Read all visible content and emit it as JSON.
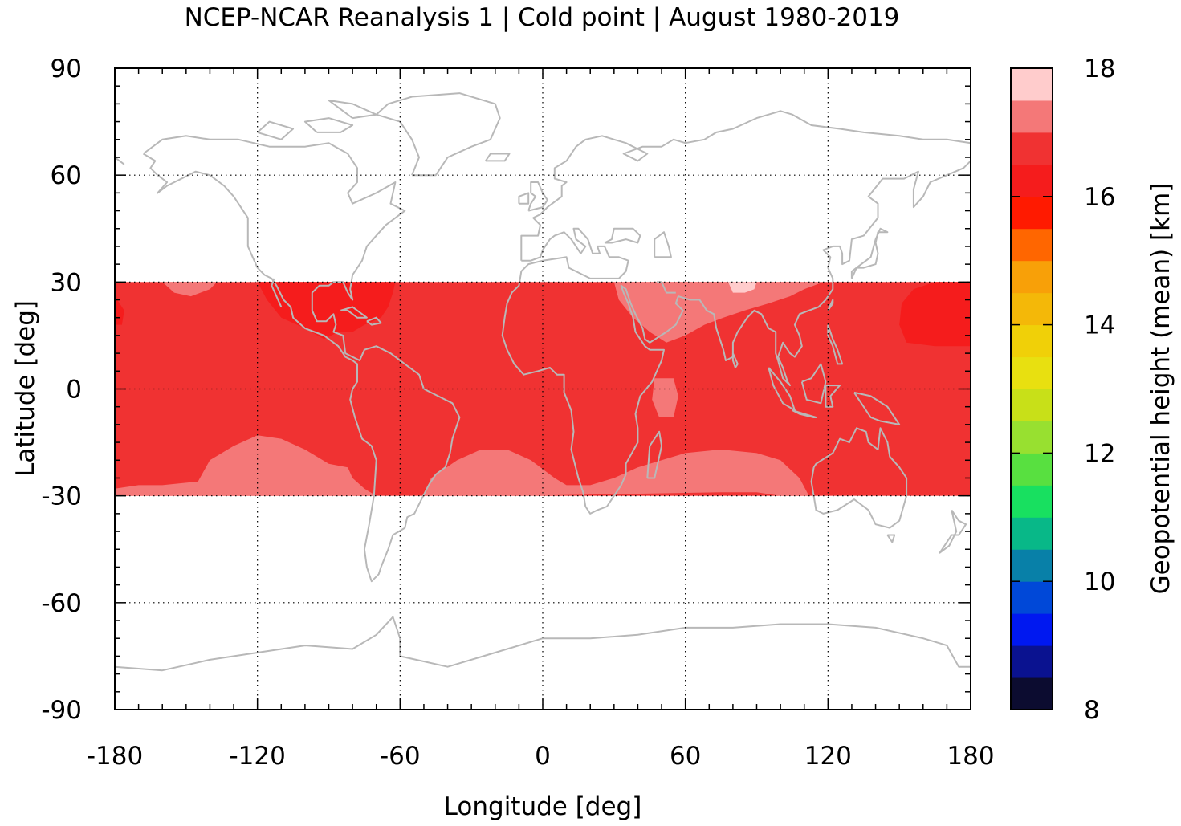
{
  "title": "NCEP-NCAR Reanalysis 1 | Cold point | August 1980-2019",
  "x_axis": {
    "label": "Longitude [deg]",
    "range": [
      -180,
      180
    ],
    "ticks": [
      "-180",
      "-120",
      "-60",
      "0",
      "60",
      "120",
      "180"
    ],
    "tick_values": [
      -180,
      -120,
      -60,
      0,
      60,
      120,
      180
    ],
    "minor_step": 10
  },
  "y_axis": {
    "label": "Latitude [deg]",
    "range": [
      -90,
      90
    ],
    "ticks": [
      "90",
      "60",
      "30",
      "0",
      "-30",
      "-60",
      "-90"
    ],
    "tick_values": [
      90,
      60,
      30,
      0,
      -30,
      -60,
      -90
    ],
    "minor_step": 5
  },
  "grid": "dotted",
  "coastline_color": "#b8b8b8",
  "colorbar": {
    "label": "Geopotential height (mean) [km]",
    "range": [
      8,
      18
    ],
    "ticks": [
      "18",
      "16",
      "14",
      "12",
      "10",
      "8"
    ],
    "tick_values": [
      18,
      16,
      14,
      12,
      10,
      8
    ],
    "levels": [
      {
        "from": 8.0,
        "to": 8.5,
        "color": "#0c0c30"
      },
      {
        "from": 8.5,
        "to": 9.0,
        "color": "#0a1290"
      },
      {
        "from": 9.0,
        "to": 9.5,
        "color": "#0018f0"
      },
      {
        "from": 9.5,
        "to": 10.0,
        "color": "#0048d8"
      },
      {
        "from": 10.0,
        "to": 10.5,
        "color": "#0880a8"
      },
      {
        "from": 10.5,
        "to": 11.0,
        "color": "#08b888"
      },
      {
        "from": 11.0,
        "to": 11.5,
        "color": "#18e060"
      },
      {
        "from": 11.5,
        "to": 12.0,
        "color": "#58e040"
      },
      {
        "from": 12.0,
        "to": 12.5,
        "color": "#98e030"
      },
      {
        "from": 12.5,
        "to": 13.0,
        "color": "#c8e018"
      },
      {
        "from": 13.0,
        "to": 13.5,
        "color": "#e8e010"
      },
      {
        "from": 13.5,
        "to": 14.0,
        "color": "#f0d008"
      },
      {
        "from": 14.0,
        "to": 14.5,
        "color": "#f4b808"
      },
      {
        "from": 14.5,
        "to": 15.0,
        "color": "#f8a008"
      },
      {
        "from": 15.0,
        "to": 15.5,
        "color": "#ff6600"
      },
      {
        "from": 15.5,
        "to": 16.0,
        "color": "#ff1a00"
      },
      {
        "from": 16.0,
        "to": 16.5,
        "color": "#f51c1c"
      },
      {
        "from": 16.5,
        "to": 17.0,
        "color": "#f03232"
      },
      {
        "from": 17.0,
        "to": 17.5,
        "color": "#f47878"
      },
      {
        "from": 17.5,
        "to": 18.0,
        "color": "#ffcccc"
      }
    ]
  },
  "chart_data": {
    "type": "heatmap",
    "x_extent": [
      -180,
      180
    ],
    "y_extent": [
      -30,
      30
    ],
    "background_value": 16.75,
    "regions": [
      {
        "name": "southern-pacific-band",
        "value": 17.25,
        "polygon": [
          [
            -180,
            -30
          ],
          [
            -180,
            -28
          ],
          [
            -170,
            -27
          ],
          [
            -160,
            -27
          ],
          [
            -145,
            -26
          ],
          [
            -140,
            -20
          ],
          [
            -130,
            -16
          ],
          [
            -120,
            -13
          ],
          [
            -110,
            -14
          ],
          [
            -100,
            -17
          ],
          [
            -90,
            -21
          ],
          [
            -82,
            -22
          ],
          [
            -80,
            -25
          ],
          [
            -75,
            -28
          ],
          [
            -70,
            -30
          ]
        ]
      },
      {
        "name": "southern-atlantic-indian-band",
        "value": 17.25,
        "polygon": [
          [
            -50,
            -30
          ],
          [
            -47,
            -25
          ],
          [
            -36,
            -20
          ],
          [
            -26,
            -17
          ],
          [
            -15,
            -17
          ],
          [
            -5,
            -20
          ],
          [
            5,
            -25
          ],
          [
            10,
            -27
          ],
          [
            20,
            -27
          ],
          [
            30,
            -25
          ],
          [
            40,
            -22
          ],
          [
            50,
            -20
          ],
          [
            60,
            -18
          ],
          [
            75,
            -17
          ],
          [
            90,
            -18
          ],
          [
            100,
            -20
          ],
          [
            108,
            -25
          ],
          [
            112,
            -30
          ],
          [
            100,
            -30
          ],
          [
            90,
            -29
          ],
          [
            75,
            -29
          ],
          [
            -10,
            -30
          ]
        ]
      },
      {
        "name": "arabia-south-asia",
        "value": 17.25,
        "polygon": [
          [
            30,
            30
          ],
          [
            32,
            25
          ],
          [
            38,
            20
          ],
          [
            45,
            16
          ],
          [
            52,
            13
          ],
          [
            60,
            15
          ],
          [
            68,
            18
          ],
          [
            76,
            20
          ],
          [
            85,
            22
          ],
          [
            95,
            24
          ],
          [
            104,
            26
          ],
          [
            110,
            28
          ],
          [
            118,
            30
          ]
        ]
      },
      {
        "name": "indian-ocean-equatorial",
        "value": 17.25,
        "polygon": [
          [
            47,
            3
          ],
          [
            55,
            3
          ],
          [
            57,
            -2
          ],
          [
            55,
            -8
          ],
          [
            49,
            -8
          ],
          [
            46,
            -3
          ]
        ]
      },
      {
        "name": "north-central-pacific",
        "value": 17.25,
        "polygon": [
          [
            -160,
            30
          ],
          [
            -155,
            27
          ],
          [
            -148,
            26
          ],
          [
            -140,
            28
          ],
          [
            -137,
            30
          ]
        ]
      },
      {
        "name": "tibet-core",
        "value": 17.75,
        "polygon": [
          [
            78,
            30
          ],
          [
            80,
            27
          ],
          [
            85,
            27
          ],
          [
            89,
            28
          ],
          [
            90,
            30
          ]
        ]
      },
      {
        "name": "gulf-of-mexico",
        "value": 16.25,
        "polygon": [
          [
            -120,
            30
          ],
          [
            -116,
            25
          ],
          [
            -110,
            20
          ],
          [
            -100,
            17
          ],
          [
            -92,
            14
          ],
          [
            -86,
            16
          ],
          [
            -80,
            16
          ],
          [
            -75,
            18
          ],
          [
            -68,
            20
          ],
          [
            -65,
            23
          ],
          [
            -63,
            27
          ],
          [
            -62,
            30
          ]
        ]
      },
      {
        "name": "northwest-pacific",
        "value": 16.25,
        "polygon": [
          [
            180,
            30
          ],
          [
            180,
            12
          ],
          [
            165,
            12
          ],
          [
            153,
            13
          ],
          [
            150,
            18
          ],
          [
            151,
            24
          ],
          [
            156,
            28
          ],
          [
            165,
            30
          ]
        ]
      },
      {
        "name": "west-pacific-edge",
        "value": 16.25,
        "polygon": [
          [
            -180,
            26
          ],
          [
            -180,
            18
          ],
          [
            -177,
            18
          ],
          [
            -176,
            22
          ]
        ]
      }
    ]
  }
}
